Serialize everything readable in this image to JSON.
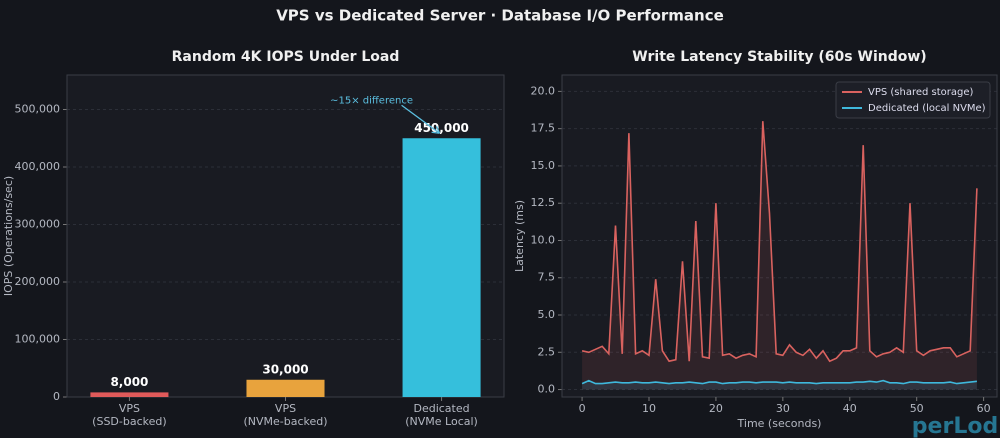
{
  "title": "VPS vs Dedicated Server · Database I/O Performance",
  "watermark": "perLod",
  "chart_data": [
    {
      "type": "bar",
      "title": "Random 4K IOPS Under Load",
      "y_label": "IOPS (Operations/sec)",
      "categories": [
        "VPS\n(SSD-backed)",
        "VPS\n(NVMe-backed)",
        "Dedicated\n(NVMe Local)"
      ],
      "values": [
        8000,
        30000,
        450000
      ],
      "value_labels": [
        "8,000",
        "30,000",
        "450,000"
      ],
      "colors": [
        "#e05a5a",
        "#e8a33d",
        "#35bfdc"
      ],
      "ylim": [
        0,
        560000
      ],
      "yticks": [
        0,
        {
          "value": 100000,
          "label": "100,000"
        },
        {
          "value": 200000,
          "label": "200,000"
        },
        {
          "value": 300000,
          "label": "300,000"
        },
        {
          "value": 400000,
          "label": "400,000"
        },
        {
          "value": 500000,
          "label": "500,000"
        }
      ],
      "grid": true,
      "annotation": {
        "text": "~15× difference",
        "color": "#5bbfe0"
      }
    },
    {
      "type": "line",
      "title": "Write Latency Stability (60s Window)",
      "x_label": "Time (seconds)",
      "y_label": "Latency (ms)",
      "x": [
        0,
        1,
        2,
        3,
        4,
        5,
        6,
        7,
        8,
        9,
        10,
        11,
        12,
        13,
        14,
        15,
        16,
        17,
        18,
        19,
        20,
        21,
        22,
        23,
        24,
        25,
        26,
        27,
        28,
        29,
        30,
        31,
        32,
        33,
        34,
        35,
        36,
        37,
        38,
        39,
        40,
        41,
        42,
        43,
        44,
        45,
        46,
        47,
        48,
        49,
        50,
        51,
        52,
        53,
        54,
        55,
        56,
        57,
        58,
        59
      ],
      "series": [
        {
          "name": "VPS (shared storage)",
          "color": "#d9625f",
          "values": [
            2.6,
            2.5,
            2.7,
            2.9,
            2.4,
            11.0,
            2.4,
            17.2,
            2.4,
            2.6,
            2.3,
            7.4,
            2.6,
            1.9,
            2.0,
            8.6,
            1.9,
            11.3,
            2.2,
            2.1,
            12.5,
            2.3,
            2.4,
            2.1,
            2.3,
            2.4,
            2.2,
            18.0,
            11.8,
            2.4,
            2.3,
            3.0,
            2.5,
            2.3,
            2.7,
            2.1,
            2.6,
            1.9,
            2.1,
            2.6,
            2.6,
            2.8,
            16.4,
            2.6,
            2.2,
            2.4,
            2.5,
            2.8,
            2.5,
            12.5,
            2.6,
            2.3,
            2.6,
            2.7,
            2.8,
            2.8,
            2.2,
            2.4,
            2.6,
            13.5
          ]
        },
        {
          "name": "Dedicated (local NVMe)",
          "color": "#3fb8dc",
          "values": [
            0.4,
            0.6,
            0.4,
            0.4,
            0.45,
            0.5,
            0.45,
            0.45,
            0.5,
            0.45,
            0.45,
            0.5,
            0.45,
            0.4,
            0.45,
            0.45,
            0.5,
            0.45,
            0.4,
            0.5,
            0.5,
            0.4,
            0.45,
            0.45,
            0.5,
            0.5,
            0.45,
            0.5,
            0.5,
            0.5,
            0.45,
            0.5,
            0.45,
            0.45,
            0.45,
            0.4,
            0.45,
            0.45,
            0.45,
            0.45,
            0.45,
            0.5,
            0.5,
            0.55,
            0.5,
            0.6,
            0.45,
            0.45,
            0.4,
            0.5,
            0.5,
            0.45,
            0.45,
            0.45,
            0.45,
            0.5,
            0.4,
            0.45,
            0.5,
            0.55
          ]
        }
      ],
      "xlim": [
        -3,
        62
      ],
      "xticks": [
        0,
        10,
        20,
        30,
        40,
        50,
        60
      ],
      "ylim": [
        -0.5,
        21.1
      ],
      "yticks": [
        {
          "value": 0,
          "label": "0.0"
        },
        {
          "value": 2.5,
          "label": "2.5"
        },
        {
          "value": 5,
          "label": "5.0"
        },
        {
          "value": 7.5,
          "label": "7.5"
        },
        {
          "value": 10,
          "label": "10.0"
        },
        {
          "value": 12.5,
          "label": "12.5"
        },
        {
          "value": 15,
          "label": "15.0"
        },
        {
          "value": 17.5,
          "label": "17.5"
        },
        {
          "value": 20,
          "label": "20.0"
        }
      ],
      "grid": true,
      "legend": "upper right"
    }
  ]
}
